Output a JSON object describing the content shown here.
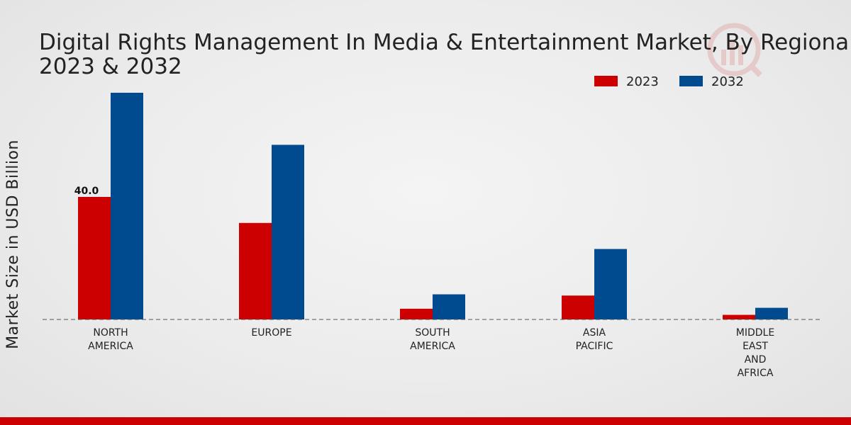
{
  "chart_data": {
    "type": "bar",
    "title_lines": [
      "Digital Rights Management In Media & Entertainment Market, By Regional,",
      "2023 & 2032"
    ],
    "ylabel": "Market Size in USD Billion",
    "xlabel": "",
    "categories": [
      [
        "NORTH",
        "AMERICA"
      ],
      [
        "EUROPE"
      ],
      [
        "SOUTH",
        "AMERICA"
      ],
      [
        "ASIA",
        "PACIFIC"
      ],
      [
        "MIDDLE",
        "EAST",
        "AND",
        "AFRICA"
      ]
    ],
    "series": [
      {
        "name": "2023",
        "color": "#cc0000",
        "values": [
          40.0,
          31.5,
          3.5,
          7.8,
          1.5
        ]
      },
      {
        "name": "2032",
        "color": "#004a8f",
        "values": [
          74.0,
          57.0,
          8.2,
          23.0,
          3.8
        ]
      }
    ],
    "data_labels": [
      {
        "series": 0,
        "index": 0,
        "text": "40.0"
      }
    ],
    "ylim": [
      0,
      80
    ],
    "grid": false,
    "legend_position": "top-right"
  }
}
